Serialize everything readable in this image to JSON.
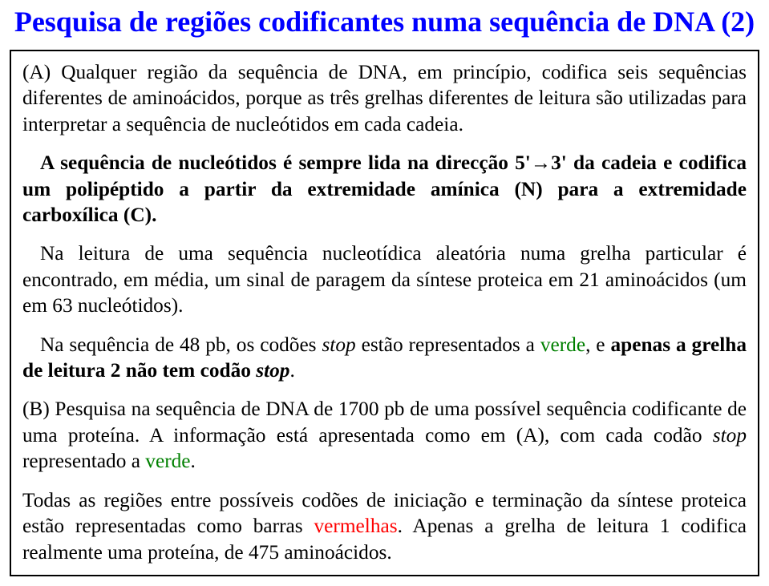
{
  "title": {
    "main": "Pesquisa de regiões codificantes numa sequência de DNA ",
    "suffix": "(2)",
    "color_main": "#0000ff",
    "color_suffix": "#0000ff",
    "fontsize_pt": 27
  },
  "body": {
    "fontsize_pt": 19,
    "green": "#008000",
    "red": "#ff0000",
    "p1": "(A) Qualquer região da sequência de DNA, em princípio, codifica seis sequências diferentes de aminoácidos, porque as três grelhas diferentes de leitura são utilizadas para interpretar a sequência de nucleótidos em cada cadeia.",
    "p2_a": "A sequência de nucleótidos é sempre lida na direcção 5'",
    "p2_arrow": "→",
    "p2_b": "3' da cadeia e codifica um polipéptido a partir da extremidade amínica (N) para a extremidade carboxílica (C).",
    "p3": "Na leitura de uma sequência nucleotídica aleatória numa grelha particular é encontrado, em média, um sinal de paragem da síntese proteica em 21 aminoácidos (um em 63 nucleótidos).",
    "p4_a": "Na sequência de 48 pb, os codões ",
    "p4_stop1": "stop",
    "p4_b": " estão representados a ",
    "p4_green": "verde",
    "p4_c": ", e ",
    "p4_bold": "apenas a grelha de leitura 2 não tem codão ",
    "p4_stop2": "stop",
    "p4_d": ".",
    "p5_a": "(B) Pesquisa na sequência de DNA de 1700 pb de uma possível sequência codificante de uma proteína. A informação está apresentada como em (A), com cada codão ",
    "p5_stop": "stop",
    "p5_b": " representado a ",
    "p5_green": "verde",
    "p5_c": ".",
    "p6_a": "Todas as regiões entre possíveis codões de iniciação e terminação da síntese proteica estão representadas como barras ",
    "p6_red": "vermelhas",
    "p6_b": ". Apenas a grelha de leitura 1 codifica realmente uma proteína, de 475 aminoácidos."
  }
}
